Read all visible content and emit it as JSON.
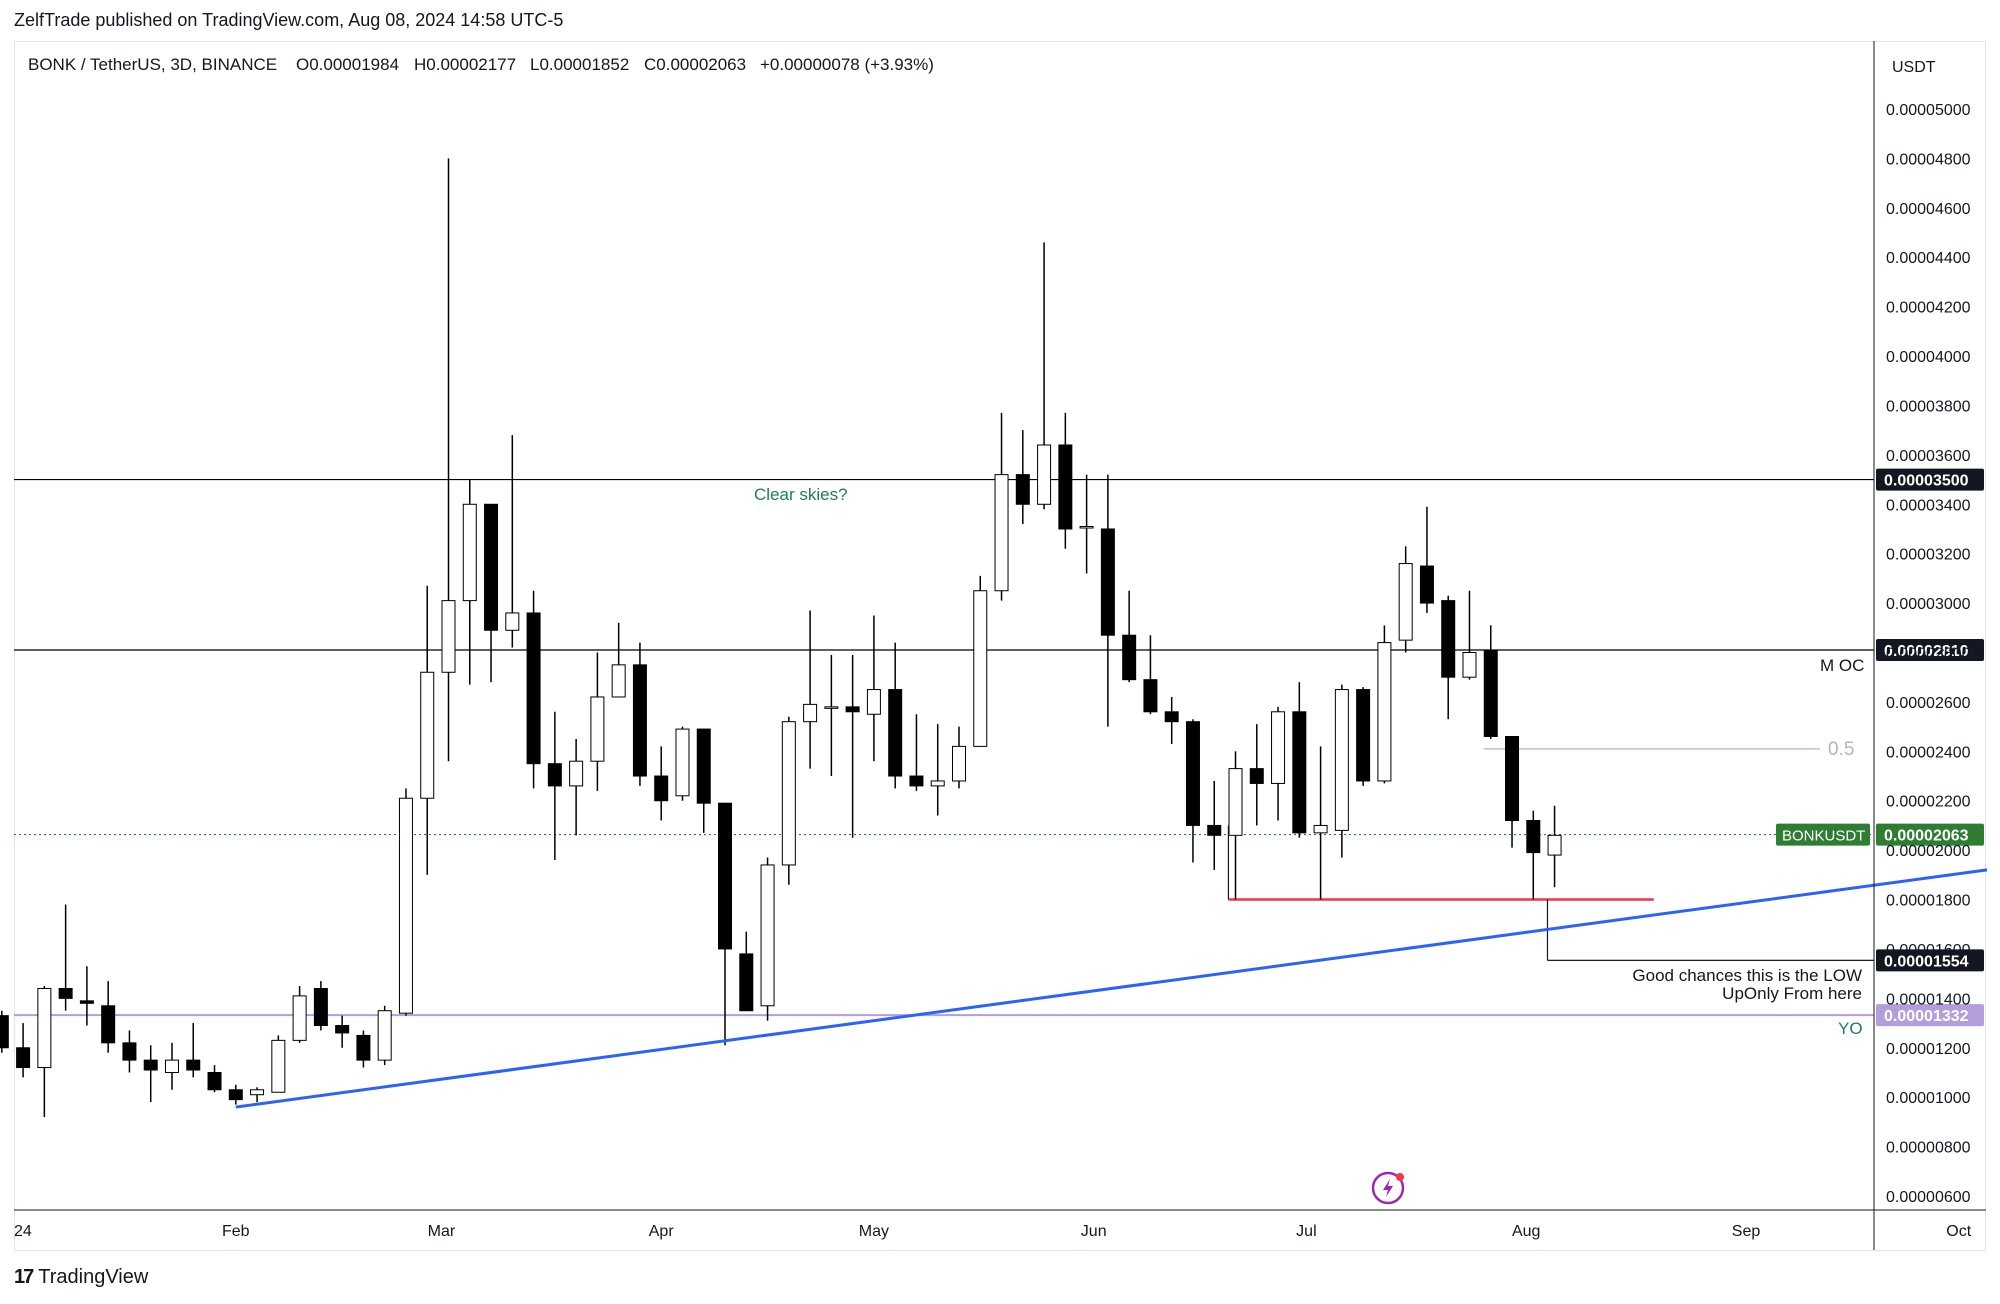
{
  "header": {
    "published": "ZelfTrade published on TradingView.com, Aug 08, 2024 14:58 UTC-5"
  },
  "legend": {
    "symbol": "BONK / TetherUS, 3D, BINANCE",
    "open": "O0.00001984",
    "high": "H0.00002177",
    "low": "L0.00001852",
    "close": "C0.00002063",
    "change": "+0.00000078 (+3.93%)"
  },
  "currency": "USDT",
  "footer": {
    "brand": "TradingView",
    "logo_mark": "17"
  },
  "annotations": {
    "clear_skies": "Clear skies?",
    "moc": "M OC",
    "fib": "0.5",
    "good_chances_1": "Good chances this is the LOW",
    "good_chances_2": "UpOnly From here",
    "yo": "YO"
  },
  "colors": {
    "up_fill": "#ffffff",
    "down_fill": "#000000",
    "trendline": "#2962ff",
    "support": "#f23645",
    "yo_line": "#b39ddb",
    "price_tag": "#2e7d32",
    "annotation_green": "#1b7f5b",
    "fib_gray": "#b2b5be"
  },
  "chart_data": {
    "type": "candlestick",
    "title": "BONK / TetherUS, 3D, BINANCE",
    "timeframe": "3D",
    "ylim": [
      5.5e-06,
      5.17e-05
    ],
    "y_ticks": [
      "0.00000600",
      "0.00000800",
      "0.00001000",
      "0.00001200",
      "0.00001400",
      "0.00001600",
      "0.00001800",
      "0.00002000",
      "0.00002200",
      "0.00002400",
      "0.00002600",
      "0.00002800",
      "0.00003000",
      "0.00003200",
      "0.00003400",
      "0.00003600",
      "0.00003800",
      "0.00004000",
      "0.00004200",
      "0.00004400",
      "0.00004600",
      "0.00004800",
      "0.00005000"
    ],
    "x_ticks": [
      {
        "label": "24",
        "date": "2024-01-01"
      },
      {
        "label": "Feb",
        "date": "2024-02-01"
      },
      {
        "label": "Mar",
        "date": "2024-03-01"
      },
      {
        "label": "Apr",
        "date": "2024-04-01"
      },
      {
        "label": "May",
        "date": "2024-05-01"
      },
      {
        "label": "Jun",
        "date": "2024-06-01"
      },
      {
        "label": "Jul",
        "date": "2024-07-01"
      },
      {
        "label": "Aug",
        "date": "2024-08-01"
      },
      {
        "label": "Sep",
        "date": "2024-09-01"
      },
      {
        "label": "Oct",
        "date": "2024-10-01"
      }
    ],
    "candles": [
      {
        "date": "2023-12-30",
        "o": 1.33e-05,
        "h": 1.35e-05,
        "l": 1.18e-05,
        "c": 1.2e-05
      },
      {
        "date": "2024-01-02",
        "o": 1.2e-05,
        "h": 1.3e-05,
        "l": 1.08e-05,
        "c": 1.12e-05
      },
      {
        "date": "2024-01-05",
        "o": 1.12e-05,
        "h": 1.45e-05,
        "l": 9.2e-06,
        "c": 1.44e-05
      },
      {
        "date": "2024-01-08",
        "o": 1.44e-05,
        "h": 1.78e-05,
        "l": 1.35e-05,
        "c": 1.4e-05
      },
      {
        "date": "2024-01-11",
        "o": 1.39e-05,
        "h": 1.53e-05,
        "l": 1.29e-05,
        "c": 1.38e-05
      },
      {
        "date": "2024-01-14",
        "o": 1.37e-05,
        "h": 1.47e-05,
        "l": 1.18e-05,
        "c": 1.22e-05
      },
      {
        "date": "2024-01-17",
        "o": 1.22e-05,
        "h": 1.27e-05,
        "l": 1.1e-05,
        "c": 1.15e-05
      },
      {
        "date": "2024-01-20",
        "o": 1.15e-05,
        "h": 1.21e-05,
        "l": 9.8e-06,
        "c": 1.11e-05
      },
      {
        "date": "2024-01-23",
        "o": 1.1e-05,
        "h": 1.22e-05,
        "l": 1.03e-05,
        "c": 1.15e-05
      },
      {
        "date": "2024-01-26",
        "o": 1.15e-05,
        "h": 1.3e-05,
        "l": 1.08e-05,
        "c": 1.11e-05
      },
      {
        "date": "2024-01-29",
        "o": 1.1e-05,
        "h": 1.13e-05,
        "l": 1.02e-05,
        "c": 1.03e-05
      },
      {
        "date": "2024-02-01",
        "o": 1.03e-05,
        "h": 1.05e-05,
        "l": 9.7e-06,
        "c": 9.9e-06
      },
      {
        "date": "2024-02-04",
        "o": 1.01e-05,
        "h": 1.04e-05,
        "l": 9.8e-06,
        "c": 1.03e-05
      },
      {
        "date": "2024-02-07",
        "o": 1.02e-05,
        "h": 1.25e-05,
        "l": 1.02e-05,
        "c": 1.23e-05
      },
      {
        "date": "2024-02-10",
        "o": 1.23e-05,
        "h": 1.45e-05,
        "l": 1.22e-05,
        "c": 1.41e-05
      },
      {
        "date": "2024-02-13",
        "o": 1.44e-05,
        "h": 1.47e-05,
        "l": 1.27e-05,
        "c": 1.29e-05
      },
      {
        "date": "2024-02-16",
        "o": 1.29e-05,
        "h": 1.33e-05,
        "l": 1.2e-05,
        "c": 1.26e-05
      },
      {
        "date": "2024-02-19",
        "o": 1.25e-05,
        "h": 1.27e-05,
        "l": 1.12e-05,
        "c": 1.15e-05
      },
      {
        "date": "2024-02-22",
        "o": 1.15e-05,
        "h": 1.37e-05,
        "l": 1.13e-05,
        "c": 1.35e-05
      },
      {
        "date": "2024-02-25",
        "o": 1.34e-05,
        "h": 2.25e-05,
        "l": 1.33e-05,
        "c": 2.21e-05
      },
      {
        "date": "2024-02-28",
        "o": 2.21e-05,
        "h": 3.07e-05,
        "l": 1.9e-05,
        "c": 2.72e-05
      },
      {
        "date": "2024-03-02",
        "o": 2.72e-05,
        "h": 4.8e-05,
        "l": 2.36e-05,
        "c": 3.01e-05
      },
      {
        "date": "2024-03-05",
        "o": 3.01e-05,
        "h": 3.5e-05,
        "l": 2.67e-05,
        "c": 3.4e-05
      },
      {
        "date": "2024-03-08",
        "o": 3.4e-05,
        "h": 3.4e-05,
        "l": 2.68e-05,
        "c": 2.89e-05
      },
      {
        "date": "2024-03-11",
        "o": 2.89e-05,
        "h": 3.68e-05,
        "l": 2.82e-05,
        "c": 2.96e-05
      },
      {
        "date": "2024-03-14",
        "o": 2.96e-05,
        "h": 3.05e-05,
        "l": 2.25e-05,
        "c": 2.35e-05
      },
      {
        "date": "2024-03-17",
        "o": 2.35e-05,
        "h": 2.56e-05,
        "l": 1.96e-05,
        "c": 2.26e-05
      },
      {
        "date": "2024-03-20",
        "o": 2.26e-05,
        "h": 2.45e-05,
        "l": 2.06e-05,
        "c": 2.36e-05
      },
      {
        "date": "2024-03-23",
        "o": 2.36e-05,
        "h": 2.8e-05,
        "l": 2.24e-05,
        "c": 2.62e-05
      },
      {
        "date": "2024-03-26",
        "o": 2.62e-05,
        "h": 2.92e-05,
        "l": 2.62e-05,
        "c": 2.75e-05
      },
      {
        "date": "2024-03-29",
        "o": 2.75e-05,
        "h": 2.84e-05,
        "l": 2.26e-05,
        "c": 2.3e-05
      },
      {
        "date": "2024-04-01",
        "o": 2.3e-05,
        "h": 2.42e-05,
        "l": 2.12e-05,
        "c": 2.2e-05
      },
      {
        "date": "2024-04-04",
        "o": 2.22e-05,
        "h": 2.5e-05,
        "l": 2.2e-05,
        "c": 2.49e-05
      },
      {
        "date": "2024-04-07",
        "o": 2.49e-05,
        "h": 2.49e-05,
        "l": 2.07e-05,
        "c": 2.19e-05
      },
      {
        "date": "2024-04-10",
        "o": 2.19e-05,
        "h": 2.19e-05,
        "l": 1.21e-05,
        "c": 1.6e-05
      },
      {
        "date": "2024-04-13",
        "o": 1.58e-05,
        "h": 1.67e-05,
        "l": 1.36e-05,
        "c": 1.35e-05
      },
      {
        "date": "2024-04-16",
        "o": 1.37e-05,
        "h": 1.97e-05,
        "l": 1.31e-05,
        "c": 1.94e-05
      },
      {
        "date": "2024-04-19",
        "o": 1.94e-05,
        "h": 2.54e-05,
        "l": 1.86e-05,
        "c": 2.52e-05
      },
      {
        "date": "2024-04-22",
        "o": 2.52e-05,
        "h": 2.97e-05,
        "l": 2.33e-05,
        "c": 2.59e-05
      },
      {
        "date": "2024-04-25",
        "o": 2.58e-05,
        "h": 2.79e-05,
        "l": 2.3e-05,
        "c": 2.58e-05
      },
      {
        "date": "2024-04-28",
        "o": 2.58e-05,
        "h": 2.79e-05,
        "l": 2.05e-05,
        "c": 2.56e-05
      },
      {
        "date": "2024-05-01",
        "o": 2.55e-05,
        "h": 2.95e-05,
        "l": 2.36e-05,
        "c": 2.65e-05
      },
      {
        "date": "2024-05-04",
        "o": 2.65e-05,
        "h": 2.84e-05,
        "l": 2.25e-05,
        "c": 2.3e-05
      },
      {
        "date": "2024-05-07",
        "o": 2.3e-05,
        "h": 2.55e-05,
        "l": 2.24e-05,
        "c": 2.26e-05
      },
      {
        "date": "2024-05-10",
        "o": 2.26e-05,
        "h": 2.51e-05,
        "l": 2.14e-05,
        "c": 2.28e-05
      },
      {
        "date": "2024-05-13",
        "o": 2.28e-05,
        "h": 2.5e-05,
        "l": 2.25e-05,
        "c": 2.42e-05
      },
      {
        "date": "2024-05-16",
        "o": 2.42e-05,
        "h": 3.11e-05,
        "l": 2.42e-05,
        "c": 3.05e-05
      },
      {
        "date": "2024-05-19",
        "o": 3.05e-05,
        "h": 3.77e-05,
        "l": 3.01e-05,
        "c": 3.52e-05
      },
      {
        "date": "2024-05-22",
        "o": 3.52e-05,
        "h": 3.7e-05,
        "l": 3.32e-05,
        "c": 3.4e-05
      },
      {
        "date": "2024-05-25",
        "o": 3.4e-05,
        "h": 4.46e-05,
        "l": 3.38e-05,
        "c": 3.64e-05
      },
      {
        "date": "2024-05-28",
        "o": 3.64e-05,
        "h": 3.77e-05,
        "l": 3.22e-05,
        "c": 3.3e-05
      },
      {
        "date": "2024-05-31",
        "o": 3.31e-05,
        "h": 3.52e-05,
        "l": 3.12e-05,
        "c": 3.31e-05
      },
      {
        "date": "2024-06-03",
        "o": 3.3e-05,
        "h": 3.52e-05,
        "l": 2.5e-05,
        "c": 2.87e-05
      },
      {
        "date": "2024-06-06",
        "o": 2.87e-05,
        "h": 3.05e-05,
        "l": 2.68e-05,
        "c": 2.69e-05
      },
      {
        "date": "2024-06-09",
        "o": 2.69e-05,
        "h": 2.87e-05,
        "l": 2.55e-05,
        "c": 2.56e-05
      },
      {
        "date": "2024-06-12",
        "o": 2.56e-05,
        "h": 2.62e-05,
        "l": 2.43e-05,
        "c": 2.52e-05
      },
      {
        "date": "2024-06-15",
        "o": 2.52e-05,
        "h": 2.53e-05,
        "l": 1.95e-05,
        "c": 2.1e-05
      },
      {
        "date": "2024-06-18",
        "o": 2.1e-05,
        "h": 2.28e-05,
        "l": 1.92e-05,
        "c": 2.06e-05
      },
      {
        "date": "2024-06-21",
        "o": 2.06e-05,
        "h": 2.4e-05,
        "l": 1.8e-05,
        "c": 2.33e-05
      },
      {
        "date": "2024-06-24",
        "o": 2.33e-05,
        "h": 2.51e-05,
        "l": 2.1e-05,
        "c": 2.27e-05
      },
      {
        "date": "2024-06-27",
        "o": 2.27e-05,
        "h": 2.58e-05,
        "l": 2.12e-05,
        "c": 2.56e-05
      },
      {
        "date": "2024-06-30",
        "o": 2.56e-05,
        "h": 2.68e-05,
        "l": 2.05e-05,
        "c": 2.07e-05
      },
      {
        "date": "2024-07-03",
        "o": 2.07e-05,
        "h": 2.42e-05,
        "l": 1.8e-05,
        "c": 2.1e-05
      },
      {
        "date": "2024-07-06",
        "o": 2.08e-05,
        "h": 2.67e-05,
        "l": 1.97e-05,
        "c": 2.65e-05
      },
      {
        "date": "2024-07-09",
        "o": 2.65e-05,
        "h": 2.66e-05,
        "l": 2.26e-05,
        "c": 2.28e-05
      },
      {
        "date": "2024-07-12",
        "o": 2.28e-05,
        "h": 2.91e-05,
        "l": 2.27e-05,
        "c": 2.84e-05
      },
      {
        "date": "2024-07-15",
        "o": 2.85e-05,
        "h": 3.23e-05,
        "l": 2.8e-05,
        "c": 3.16e-05
      },
      {
        "date": "2024-07-18",
        "o": 3.15e-05,
        "h": 3.39e-05,
        "l": 2.96e-05,
        "c": 3e-05
      },
      {
        "date": "2024-07-21",
        "o": 3.01e-05,
        "h": 3.03e-05,
        "l": 2.53e-05,
        "c": 2.7e-05
      },
      {
        "date": "2024-07-24",
        "o": 2.7e-05,
        "h": 3.05e-05,
        "l": 2.69e-05,
        "c": 2.8e-05
      },
      {
        "date": "2024-07-27",
        "o": 2.81e-05,
        "h": 2.91e-05,
        "l": 2.45e-05,
        "c": 2.46e-05
      },
      {
        "date": "2024-07-30",
        "o": 2.46e-05,
        "h": 2.46e-05,
        "l": 2.01e-05,
        "c": 2.12e-05
      },
      {
        "date": "2024-08-02",
        "o": 2.12e-05,
        "h": 2.16e-05,
        "l": 1.8e-05,
        "c": 1.99e-05
      },
      {
        "date": "2024-08-05",
        "o": 1.98e-05,
        "h": 2.18e-05,
        "l": 1.85e-05,
        "c": 2.06e-05
      }
    ],
    "horizontal_lines": [
      {
        "price": 3.5e-05,
        "label": "0.00003500",
        "color": "#000000"
      },
      {
        "price": 2.81e-05,
        "label": "0.00002810",
        "color": "#000000",
        "text": "M OC"
      },
      {
        "price": 1.554e-05,
        "label": "0.00001554",
        "color": "#000000",
        "start_date": "2024-08-04"
      },
      {
        "price": 1.332e-05,
        "label": "0.00001332",
        "color": "#b39ddb",
        "text": "YO"
      },
      {
        "price": 2.063e-05,
        "label": "0.00002063",
        "color": "#2e7d32",
        "dotted": true,
        "tag": "BONKUSDT"
      },
      {
        "price": 2.41e-05,
        "color": "#b2b5be",
        "start_date": "2024-07-26",
        "text": "0.5"
      },
      {
        "price": 1.8e-05,
        "color": "#f23645",
        "start_date": "2024-06-20",
        "end_date": "2024-08-19"
      }
    ],
    "trendline": {
      "start": {
        "date": "2024-02-01",
        "price": 9.6e-06
      },
      "end": {
        "date": "2024-10-05",
        "price": 1.92e-05
      },
      "color": "#2962ff"
    },
    "current_price": {
      "symbol": "BONKUSDT",
      "price": "0.00002063"
    }
  }
}
